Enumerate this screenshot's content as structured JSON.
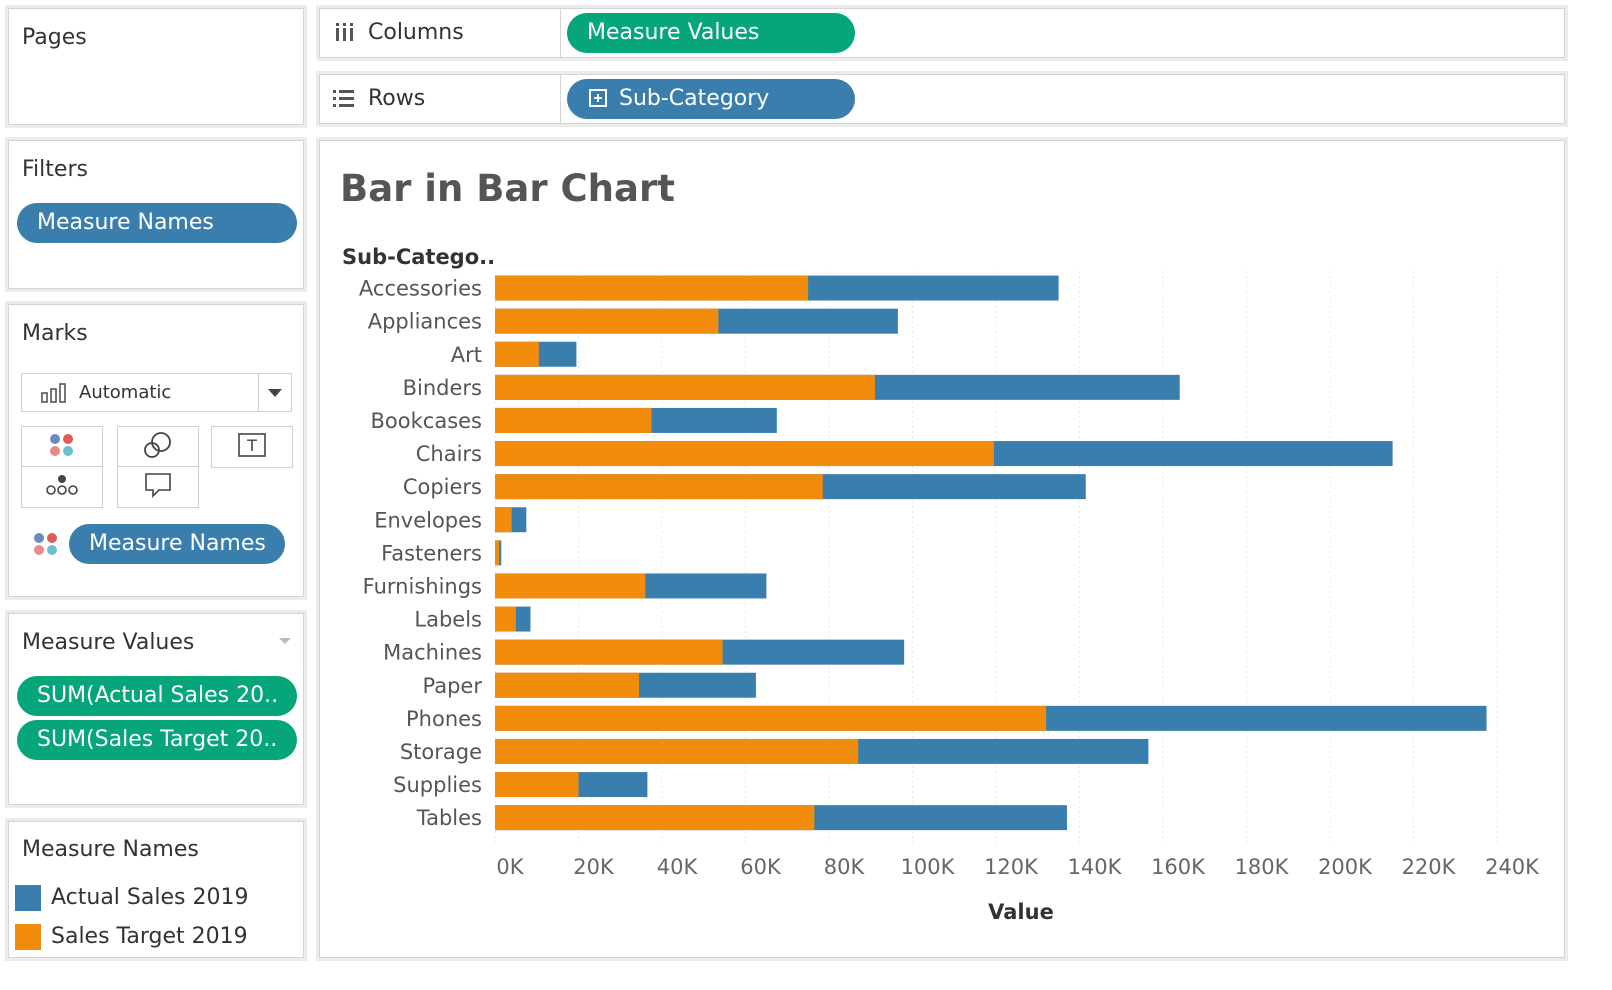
{
  "pages": {
    "title": "Pages"
  },
  "shelves": {
    "columns_label": "Columns",
    "columns_pill": "Measure Values",
    "rows_label": "Rows",
    "rows_pill": "Sub-Category"
  },
  "filters": {
    "title": "Filters",
    "pill": "Measure Names"
  },
  "marks": {
    "title": "Marks",
    "mark_type": "Automatic",
    "color_pill": "Measure Names"
  },
  "measure_values": {
    "title": "Measure Values",
    "pills": [
      "SUM(Actual Sales 20..",
      "SUM(Sales Target 20.."
    ]
  },
  "legend": {
    "title": "Measure Names",
    "items": [
      {
        "label": "Actual Sales 2019",
        "color": "#3a7eae"
      },
      {
        "label": "Sales Target 2019",
        "color": "#f28c0c"
      }
    ]
  },
  "chart_title": "Bar in Bar Chart",
  "chart_data": {
    "type": "bar",
    "orientation": "horizontal",
    "style": "bar-in-bar",
    "title": "Bar in Bar Chart",
    "row_header": "Sub-Catego..",
    "xlabel": "Value",
    "xlim": [
      0,
      240000
    ],
    "xticks": [
      0,
      20000,
      40000,
      60000,
      80000,
      100000,
      120000,
      140000,
      160000,
      180000,
      200000,
      220000,
      240000
    ],
    "xtick_labels": [
      "0K",
      "20K",
      "40K",
      "60K",
      "80K",
      "100K",
      "120K",
      "140K",
      "160K",
      "180K",
      "200K",
      "220K",
      "240K"
    ],
    "grid": true,
    "categories": [
      "Accessories",
      "Appliances",
      "Art",
      "Binders",
      "Bookcases",
      "Chairs",
      "Copiers",
      "Envelopes",
      "Fasteners",
      "Furnishings",
      "Labels",
      "Machines",
      "Paper",
      "Phones",
      "Storage",
      "Supplies",
      "Tables"
    ],
    "series": [
      {
        "name": "Actual Sales 2019",
        "color": "#3a7eae",
        "values": [
          135000,
          96500,
          19500,
          164000,
          67500,
          215000,
          141500,
          7500,
          1500,
          65000,
          8500,
          98000,
          62500,
          237500,
          156500,
          36500,
          137000
        ]
      },
      {
        "name": "Sales Target 2019",
        "color": "#f28c0c",
        "values": [
          75000,
          53500,
          10500,
          91000,
          37500,
          119500,
          78500,
          4000,
          1000,
          36000,
          5000,
          54500,
          34500,
          132000,
          87000,
          20000,
          76500
        ]
      }
    ]
  }
}
